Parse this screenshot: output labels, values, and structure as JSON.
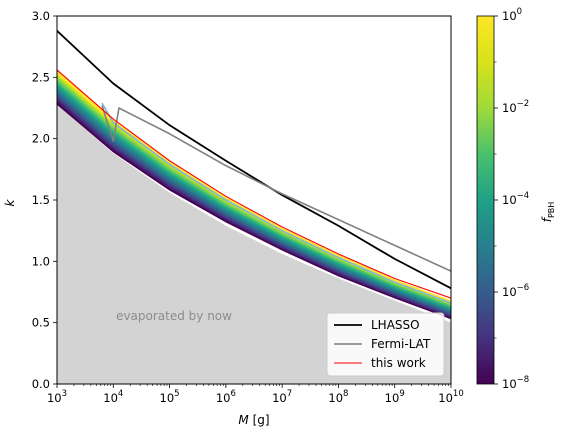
{
  "chart_data": {
    "type": "line",
    "xlabel_italic": "M",
    "xlabel_unit": "[g]",
    "ylabel": "k",
    "x_scale": "log",
    "xlim": [
      1000,
      10000000000
    ],
    "ylim": [
      0,
      3.0
    ],
    "x_ticks": [
      {
        "value": 1000,
        "base": "10",
        "exp": "3"
      },
      {
        "value": 10000,
        "base": "10",
        "exp": "4"
      },
      {
        "value": 100000,
        "base": "10",
        "exp": "5"
      },
      {
        "value": 1000000,
        "base": "10",
        "exp": "6"
      },
      {
        "value": 10000000,
        "base": "10",
        "exp": "7"
      },
      {
        "value": 100000000,
        "base": "10",
        "exp": "8"
      },
      {
        "value": 1000000000,
        "base": "10",
        "exp": "9"
      },
      {
        "value": 10000000000,
        "base": "10",
        "exp": "10"
      }
    ],
    "y_ticks": [
      "0.0",
      "0.5",
      "1.0",
      "1.5",
      "2.0",
      "2.5",
      "3.0"
    ],
    "grid": false,
    "legend_position": "bottom-right",
    "annotation": "evaporated by now",
    "series": [
      {
        "name": "LHASSO",
        "color": "#000000",
        "x": [
          1000,
          10000,
          100000,
          1000000,
          10000000,
          100000000,
          1000000000,
          10000000000
        ],
        "y": [
          2.88,
          2.45,
          2.11,
          1.82,
          1.54,
          1.29,
          1.02,
          0.78
        ]
      },
      {
        "name": "Fermi-LAT",
        "color": "#808080",
        "x": [
          6300,
          10000,
          12600,
          100000,
          1000000,
          10000000,
          100000000,
          1000000000,
          10000000000
        ],
        "y": [
          2.27,
          1.98,
          2.25,
          2.04,
          1.78,
          1.55,
          1.34,
          1.13,
          0.92
        ]
      },
      {
        "name": "this work",
        "color": "#ff0000",
        "x": [
          1000,
          10000,
          100000,
          1000000,
          10000000,
          100000000,
          1000000000,
          10000000000
        ],
        "y": [
          2.56,
          2.16,
          1.82,
          1.53,
          1.28,
          1.06,
          0.86,
          0.7
        ]
      }
    ],
    "fpbh_band": {
      "x": [
        1000,
        10000,
        100000,
        1000000,
        10000000,
        100000000,
        1000000000,
        10000000000
      ],
      "upper_y": [
        2.55,
        2.15,
        1.81,
        1.52,
        1.27,
        1.05,
        0.85,
        0.68
      ],
      "lower_y": [
        2.28,
        1.89,
        1.58,
        1.32,
        1.09,
        0.88,
        0.7,
        0.53
      ]
    },
    "evaporated_region": {
      "x": [
        1000,
        10000,
        100000,
        1000000,
        10000000,
        100000000,
        1000000000,
        10000000000
      ],
      "boundary_y": [
        2.28,
        1.88,
        1.56,
        1.29,
        1.06,
        0.86,
        0.68,
        0.5
      ]
    },
    "colorbar": {
      "label_main": "f",
      "label_sub": "PBH",
      "scale": "log",
      "range": [
        1e-08,
        1
      ],
      "colormap": "viridis",
      "ticks": [
        {
          "base": "10",
          "exp": "0"
        },
        {
          "base": "10",
          "exp": "−2"
        },
        {
          "base": "10",
          "exp": "−4"
        },
        {
          "base": "10",
          "exp": "−6"
        },
        {
          "base": "10",
          "exp": "−8"
        }
      ]
    }
  }
}
